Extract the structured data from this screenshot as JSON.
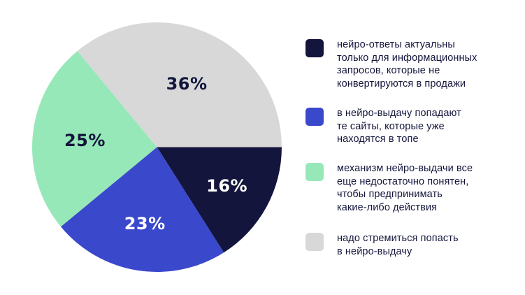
{
  "chart_data": {
    "type": "pie",
    "title": "",
    "start_angle_deg": 0,
    "direction": "clockwise",
    "slices": [
      {
        "label": "нейро-ответы актуальны только для информационных запросов, которые не конвертируются в продажи",
        "value": 16,
        "display": "16%",
        "color": "#13153c",
        "label_color": "#ffffff"
      },
      {
        "label": "в нейро-выдачу попадают те сайты, которые уже находятся в топе",
        "value": 23,
        "display": "23%",
        "color": "#3a48cc",
        "label_color": "#ffffff"
      },
      {
        "label": "механизм нейро-выдачи все еще недостаточно понятен, чтобы предпринимать какие-либо действия",
        "value": 25,
        "display": "25%",
        "color": "#97e8b8",
        "label_color": "#13153c"
      },
      {
        "label": "надо стремиться попасть в нейро-выдачу",
        "value": 36,
        "display": "36%",
        "color": "#d8d8d8",
        "label_color": "#13153c"
      }
    ],
    "legend_position": "right"
  },
  "legend": {
    "items": [
      {
        "color": "#13153c",
        "lines": [
          "нейро-ответы актуальны",
          "только для информационных",
          "запросов, которые не",
          "конвертируются в продажи"
        ]
      },
      {
        "color": "#3a48cc",
        "lines": [
          "в нейро-выдачу попадают",
          "те сайты, которые уже",
          "находятся в топе"
        ]
      },
      {
        "color": "#97e8b8",
        "lines": [
          "механизм нейро-выдачи все",
          "еще недостаточно понятен,",
          "чтобы предпринимать",
          "какие-либо действия"
        ]
      },
      {
        "color": "#d8d8d8",
        "lines": [
          "надо стремиться попасть",
          "в нейро-выдачу"
        ]
      }
    ]
  },
  "colors": {
    "text": "#13153c",
    "background": "#ffffff"
  }
}
